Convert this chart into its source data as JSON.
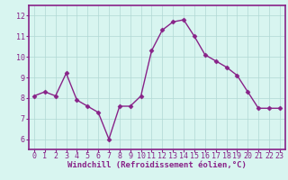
{
  "x": [
    0,
    1,
    2,
    3,
    4,
    5,
    6,
    7,
    8,
    9,
    10,
    11,
    12,
    13,
    14,
    15,
    16,
    17,
    18,
    19,
    20,
    21,
    22,
    23
  ],
  "y": [
    8.1,
    8.3,
    8.1,
    9.2,
    7.9,
    7.6,
    7.3,
    6.0,
    7.6,
    7.6,
    8.1,
    10.3,
    11.3,
    11.7,
    11.8,
    11.0,
    10.1,
    9.8,
    9.5,
    9.1,
    8.3,
    7.5,
    7.5,
    7.5
  ],
  "line_color": "#882288",
  "marker": "D",
  "marker_size": 2.5,
  "bg_color": "#d8f5f0",
  "grid_color": "#b0d8d4",
  "xlabel": "Windchill (Refroidissement éolien,°C)",
  "xlabel_color": "#882288",
  "xlabel_fontsize": 6.5,
  "tick_color": "#882288",
  "tick_fontsize": 6.0,
  "ylim": [
    5.5,
    12.5
  ],
  "xlim": [
    -0.5,
    23.5
  ],
  "yticks": [
    6,
    7,
    8,
    9,
    10,
    11,
    12
  ],
  "xticks": [
    0,
    1,
    2,
    3,
    4,
    5,
    6,
    7,
    8,
    9,
    10,
    11,
    12,
    13,
    14,
    15,
    16,
    17,
    18,
    19,
    20,
    21,
    22,
    23
  ],
  "spine_color": "#882288",
  "spine_linewidth": 1.2
}
